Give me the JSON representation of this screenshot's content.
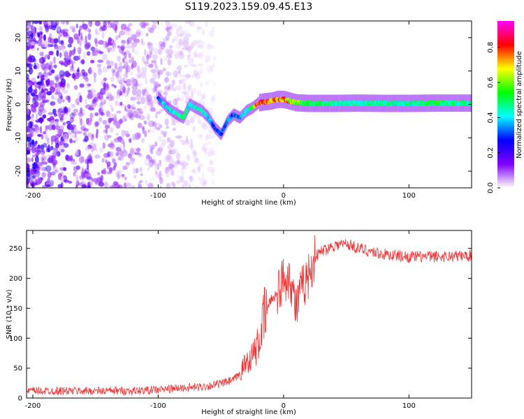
{
  "title": "S119.2023.159.09.45.E13",
  "colors": {
    "snr_line": "#f03030",
    "axis": "#000000"
  },
  "chart_data": [
    {
      "type": "heatmap",
      "name": "spectrogram",
      "xlabel": "Height of straight line (km)",
      "ylabel": "Frequency (Hz)",
      "xlim": [
        -205,
        150
      ],
      "ylim": [
        -25,
        25
      ],
      "xticks": [
        -200,
        -100,
        0,
        100
      ],
      "yticks": [
        -20,
        -10,
        0,
        10,
        20
      ],
      "colorbar": {
        "label": "Normalized spectral amplitude",
        "range": [
          0,
          0.95
        ],
        "ticks": [
          "0.0",
          "0.2",
          "0.4",
          "0.6",
          "0.8"
        ],
        "colormap": [
          "#ffffff",
          "#8000ff",
          "#0000ff",
          "#00ffff",
          "#00ff00",
          "#ffff00",
          "#ff0000",
          "#ff00ff"
        ]
      },
      "signal_track": {
        "height_km": [
          -100,
          -93,
          -85,
          -80,
          -75,
          -70,
          -65,
          -60,
          -55,
          -50,
          -45,
          -40,
          -35,
          -30,
          -25,
          -20,
          -15,
          -10,
          -5,
          0,
          5,
          10,
          20,
          40,
          60,
          80,
          100,
          120,
          150
        ],
        "frequency_hz": [
          2,
          -1,
          -3,
          -4,
          0,
          -1,
          -2,
          -4,
          -7,
          -9,
          -5,
          -3,
          -4,
          -2,
          -1,
          0.5,
          0.8,
          1,
          1.5,
          1.5,
          1,
          0.5,
          0.3,
          0.3,
          0.4,
          0.3,
          0.3,
          0.4,
          0.4
        ],
        "amplitude": [
          0.3,
          0.4,
          0.45,
          0.5,
          0.4,
          0.4,
          0.45,
          0.4,
          0.3,
          0.3,
          0.35,
          0.3,
          0.35,
          0.4,
          0.5,
          0.8,
          0.8,
          0.7,
          0.7,
          0.75,
          0.7,
          0.6,
          0.5,
          0.45,
          0.45,
          0.45,
          0.45,
          0.5,
          0.45
        ]
      },
      "noise_region_km": [
        -205,
        -55
      ]
    },
    {
      "type": "line",
      "name": "snr",
      "xlabel": "Height of straight line (km)",
      "ylabel": "SNR (10 * v/v)",
      "xlim": [
        -205,
        150
      ],
      "ylim": [
        0,
        280
      ],
      "xticks": [
        -200,
        -100,
        0,
        100
      ],
      "yticks": [
        0,
        50,
        100,
        150,
        200,
        250
      ],
      "series": [
        {
          "x": [
            -205,
            -180,
            -150,
            -120,
            -100,
            -80,
            -70,
            -60,
            -50,
            -40,
            -35,
            -30,
            -25,
            -20,
            -15,
            -10,
            -5,
            0,
            5,
            10,
            15,
            20,
            25,
            30,
            40,
            50,
            60,
            70,
            80,
            90,
            100,
            120,
            150
          ],
          "y": [
            12,
            12,
            12,
            12,
            14,
            17,
            18,
            20,
            24,
            30,
            40,
            60,
            70,
            90,
            140,
            165,
            175,
            200,
            205,
            150,
            185,
            205,
            235,
            245,
            255,
            258,
            250,
            245,
            240,
            238,
            236,
            236,
            238
          ]
        }
      ]
    }
  ]
}
